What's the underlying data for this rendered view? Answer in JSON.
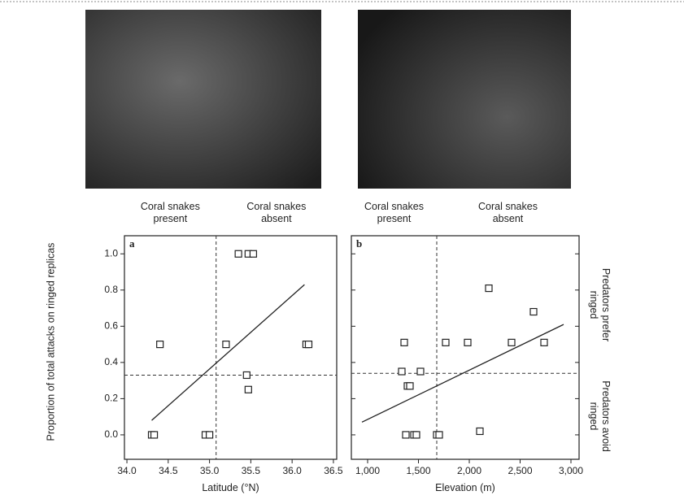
{
  "chart_data": [
    {
      "type": "scatter",
      "panel": "a",
      "xlabel": "Latitude (°N)",
      "ylabel": "Proportion of total attacks on ringed replicas",
      "annotations": [
        "Coral snakes present",
        "Coral snakes absent"
      ],
      "x": [
        34.3,
        34.33,
        34.4,
        34.95,
        35.0,
        35.2,
        35.35,
        35.47,
        35.53,
        35.45,
        35.47,
        36.17,
        36.2
      ],
      "values": [
        0,
        0,
        0.5,
        0,
        0,
        0.5,
        1.0,
        1.0,
        1.0,
        0.33,
        0.25,
        0.5,
        0.5
      ],
      "trend": {
        "x": [
          34.3,
          36.15
        ],
        "y": [
          0.08,
          0.83
        ]
      },
      "vline": 35.08,
      "hline": 0.33,
      "xlim": [
        33.97,
        36.54
      ],
      "ylim": [
        -0.135,
        1.1
      ],
      "xticks": [
        {
          "value": 34,
          "label": "34.0"
        },
        34.5,
        {
          "value": 35,
          "label": "35.0"
        },
        35.5,
        {
          "value": 36,
          "label": "36.0"
        },
        36.5
      ],
      "yticks": [
        {
          "value": 0,
          "label": "0.0"
        },
        0.2,
        0.4,
        0.6,
        0.8,
        {
          "value": 1,
          "label": "1.0"
        }
      ],
      "ytick_labels": true,
      "color": "#222"
    },
    {
      "type": "scatter",
      "panel": "b",
      "xlabel": "Elevation (m)",
      "annotations": [
        "Coral snakes present",
        "Coral snakes absent"
      ],
      "side_labels": [
        "Predators prefer ringed",
        "Predators avoid ringed"
      ],
      "x": [
        1360,
        1336,
        1520,
        1392,
        1416,
        1376,
        1456,
        1480,
        1680,
        1704,
        1768,
        1984,
        2104,
        2192,
        2416,
        2632,
        2736
      ],
      "values": [
        0.51,
        0.35,
        0.35,
        0.27,
        0.27,
        0,
        0,
        0,
        0,
        0,
        0.51,
        0.51,
        0.02,
        0.81,
        0.51,
        0.68,
        0.51
      ],
      "trend": {
        "x": [
          944,
          2928
        ],
        "y": [
          0.07,
          0.61
        ]
      },
      "vline": 1680,
      "hline": 0.34,
      "xlim": [
        840,
        3080
      ],
      "ylim": [
        -0.135,
        1.1
      ],
      "xticks": [
        {
          "value": 1000,
          "label": "1,000"
        },
        {
          "value": 1500,
          "label": "1,500"
        },
        {
          "value": 2000,
          "label": "2,000"
        },
        {
          "value": 2500,
          "label": "2,500"
        },
        {
          "value": 3000,
          "label": "3,000"
        }
      ],
      "yticks": [
        0,
        0.2,
        0.4,
        0.6,
        0.8,
        1
      ],
      "ytick_labels": false,
      "color": "#222"
    }
  ]
}
